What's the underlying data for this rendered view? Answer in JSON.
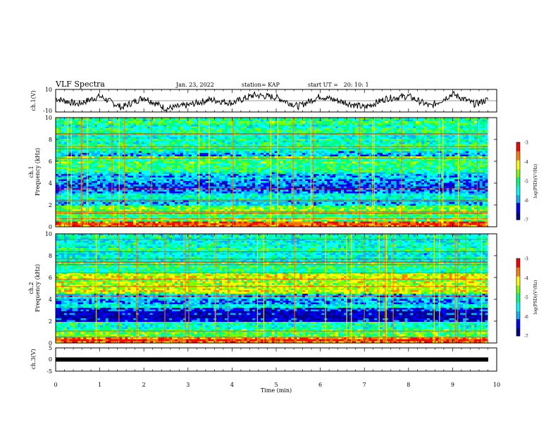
{
  "header": {
    "title": "VLF Spectra",
    "date": "Jan. 23, 2022",
    "station": "station= KAP",
    "start": "start UT =   20: 10: 1"
  },
  "chart_data": [
    {
      "type": "line",
      "panel": "ch1-waveform",
      "ylabel": "ch.1(V)",
      "ylim": [
        -10,
        10
      ],
      "y_tick_labels": [
        "10",
        "-10"
      ],
      "x": [
        0,
        0.5,
        1,
        1.5,
        2,
        2.5,
        3,
        3.5,
        4,
        4.5,
        5,
        5.5,
        6,
        6.5,
        7,
        7.5,
        8,
        8.5,
        9,
        9.5,
        9.8
      ],
      "values": [
        2,
        -3,
        4,
        -6,
        3,
        -7,
        -4,
        1,
        -2,
        5,
        3,
        -5,
        4,
        -1,
        -6,
        2,
        4,
        -5,
        6,
        -3,
        1
      ]
    },
    {
      "type": "heatmap",
      "panel": "ch1-spectrogram",
      "ylabel": "ch.1\nFrequency (kHz)",
      "ylim": [
        0,
        10
      ],
      "y_ticks": [
        "0",
        "2",
        "4",
        "6",
        "8",
        "10"
      ],
      "colorbar": {
        "label": "log(PSD)(V²/Hz)",
        "range": [
          -7,
          -3
        ],
        "ticks": [
          "-3",
          "-4",
          "-5",
          "-6",
          "-7"
        ]
      },
      "band_profile": [
        [
          "0-0.5",
          "-3.5"
        ],
        [
          "0.5-2",
          "-4.7"
        ],
        [
          "2-3",
          "-5.5"
        ],
        [
          "3-4",
          "-6.3"
        ],
        [
          "4-5",
          "-5.7"
        ],
        [
          "5-6.5",
          "-4.9"
        ],
        [
          "6.5-7",
          "-5.7"
        ],
        [
          "7-10",
          "-5.1"
        ]
      ]
    },
    {
      "type": "heatmap",
      "panel": "ch2-spectrogram",
      "ylabel": "ch.2\nFrequency (kHz)",
      "ylim": [
        0,
        10
      ],
      "y_ticks": [
        "0",
        "2",
        "4",
        "6",
        "8",
        "10"
      ],
      "colorbar": {
        "label": "log(PSD)(V²/Hz)",
        "range": [
          -7,
          -3
        ],
        "ticks": [
          "-3",
          "-4",
          "-5",
          "-6",
          "-7"
        ]
      },
      "band_profile": [
        [
          "0-0.5",
          "-3.5"
        ],
        [
          "0.5-2",
          "-5.0"
        ],
        [
          "2-3.2",
          "-6.5"
        ],
        [
          "3.2-4.5",
          "-5.7"
        ],
        [
          "4.5-6.5",
          "-4.4"
        ],
        [
          "6.5-7.5",
          "-5.0"
        ],
        [
          "7.5-10",
          "-5.3"
        ]
      ]
    },
    {
      "type": "line",
      "panel": "ch3-waveform",
      "ylabel": "ch.3(V)",
      "ylim": [
        -5,
        5
      ],
      "y_tick_labels": [
        "5",
        "0",
        "-5"
      ],
      "x": [
        0,
        9.8
      ],
      "values": [
        0,
        0
      ]
    }
  ],
  "x_axis": {
    "label": "Time (min)",
    "ticks": [
      "0",
      "1",
      "2",
      "3",
      "4",
      "5",
      "6",
      "7",
      "8",
      "9",
      "10"
    ],
    "xlim": [
      0,
      10
    ]
  },
  "colors": {
    "colormap": [
      "#00008b",
      "#0000ff",
      "#00b4ff",
      "#00ffff",
      "#00ff80",
      "#80ff00",
      "#ffff00",
      "#ff8000",
      "#ff0000",
      "#e0e0e0"
    ]
  }
}
